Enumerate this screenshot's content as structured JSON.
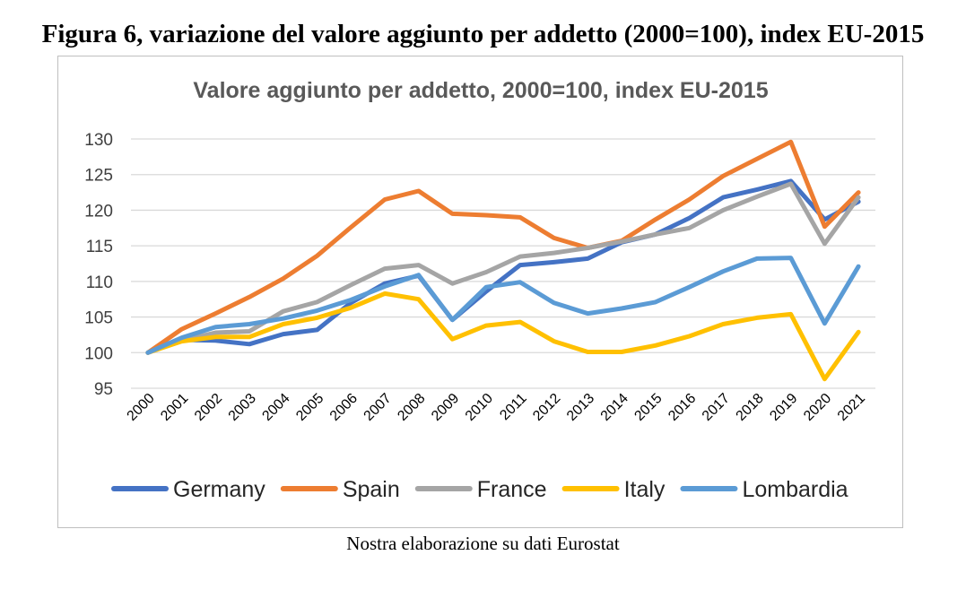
{
  "figure": {
    "title": "Figura 6, variazione del valore aggiunto per addetto (2000=100), index EU-2015",
    "caption": "Nostra elaborazione su dati Eurostat"
  },
  "chart_data": {
    "type": "line",
    "title": "Valore aggiunto per addetto, 2000=100, index EU-2015",
    "xlabel": "",
    "ylabel": "",
    "ylim": [
      95,
      130
    ],
    "yticks": [
      95,
      100,
      105,
      110,
      115,
      120,
      125,
      130
    ],
    "grid": true,
    "legend_position": "bottom",
    "categories": [
      "2000",
      "2001",
      "2002",
      "2003",
      "2004",
      "2005",
      "2006",
      "2007",
      "2008",
      "2009",
      "2010",
      "2011",
      "2012",
      "2013",
      "2014",
      "2015",
      "2016",
      "2017",
      "2018",
      "2019",
      "2020",
      "2021"
    ],
    "series": [
      {
        "name": "Germany",
        "color": "#4472C4",
        "values": [
          100,
          101.8,
          101.7,
          101.2,
          102.6,
          103.2,
          107.0,
          109.7,
          110.8,
          104.6,
          108.6,
          112.3,
          112.7,
          113.2,
          115.5,
          116.6,
          118.9,
          121.8,
          122.9,
          124.1,
          118.7,
          121.2
        ]
      },
      {
        "name": "Spain",
        "color": "#ED7D31",
        "values": [
          100,
          103.3,
          105.5,
          107.8,
          110.4,
          113.6,
          117.6,
          121.5,
          122.7,
          119.5,
          119.3,
          119.0,
          116.1,
          114.7,
          115.7,
          118.7,
          121.5,
          124.8,
          127.2,
          129.6,
          117.7,
          122.5
        ]
      },
      {
        "name": "France",
        "color": "#A5A5A5",
        "values": [
          100,
          101.7,
          102.8,
          103.0,
          105.8,
          107.1,
          109.5,
          111.8,
          112.3,
          109.7,
          111.3,
          113.5,
          114.0,
          114.7,
          115.6,
          116.6,
          117.5,
          120.0,
          121.9,
          123.7,
          115.3,
          121.8
        ]
      },
      {
        "name": "Italy",
        "color": "#FFC000",
        "values": [
          100,
          101.6,
          102.2,
          102.2,
          104.0,
          104.9,
          106.3,
          108.3,
          107.5,
          101.9,
          103.8,
          104.3,
          101.6,
          100.1,
          100.1,
          101.0,
          102.3,
          104.0,
          104.9,
          105.4,
          96.3,
          102.9
        ]
      },
      {
        "name": "Lombardia",
        "color": "#5B9BD5",
        "values": [
          100,
          102.1,
          103.6,
          104.0,
          104.8,
          105.9,
          107.4,
          109.3,
          110.9,
          104.6,
          109.2,
          109.9,
          107.0,
          105.5,
          106.2,
          107.1,
          109.2,
          111.4,
          113.2,
          113.3,
          104.1,
          112.1
        ]
      }
    ]
  }
}
